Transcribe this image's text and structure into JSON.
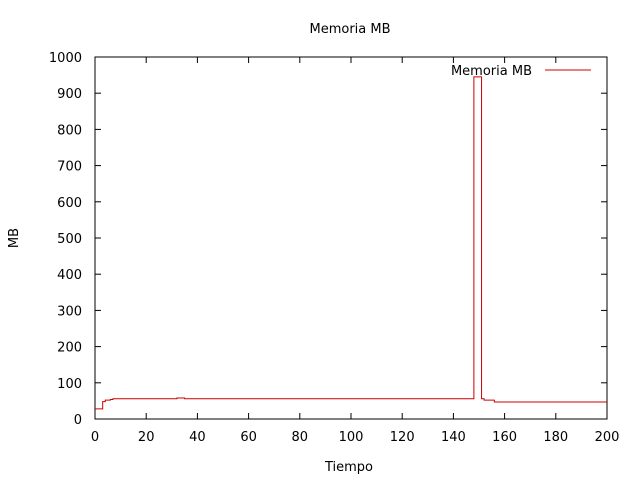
{
  "chart_data": {
    "type": "line",
    "title": "Memoria MB",
    "xlabel": "Tiempo",
    "ylabel": "MB",
    "xlim": [
      0,
      200
    ],
    "ylim": [
      0,
      1000
    ],
    "xticks": [
      0,
      20,
      40,
      60,
      80,
      100,
      120,
      140,
      160,
      180,
      200
    ],
    "yticks": [
      0,
      100,
      200,
      300,
      400,
      500,
      600,
      700,
      800,
      900,
      1000
    ],
    "legend": "top-right",
    "step": true,
    "series": [
      {
        "name": "Memoria MB",
        "color": "#cc0000",
        "x": [
          0,
          3,
          4,
          6,
          7,
          32,
          35,
          148,
          151,
          152,
          156,
          199
        ],
        "y": [
          28,
          48,
          52,
          54,
          56,
          58,
          56,
          945,
          56,
          52,
          47,
          47
        ]
      }
    ]
  }
}
